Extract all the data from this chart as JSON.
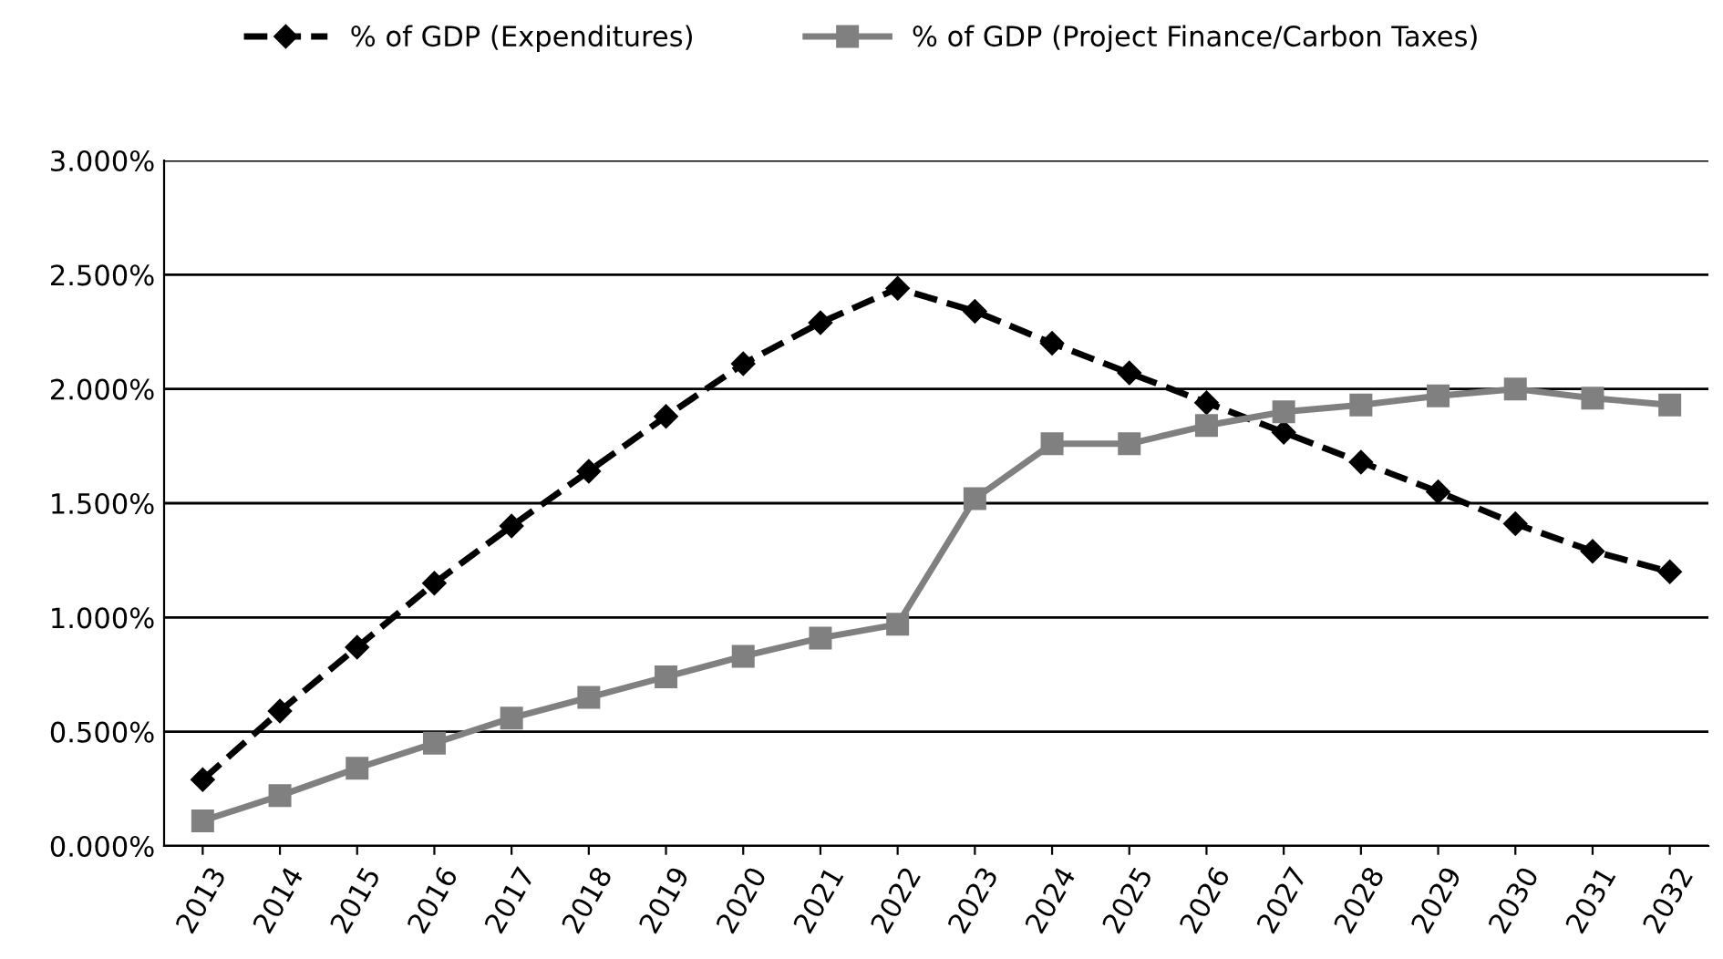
{
  "chart_data": {
    "type": "line",
    "categories": [
      "2013",
      "2014",
      "2015",
      "2016",
      "2017",
      "2018",
      "2019",
      "2020",
      "2021",
      "2022",
      "2023",
      "2024",
      "2025",
      "2026",
      "2027",
      "2028",
      "2029",
      "2030",
      "2031",
      "2032"
    ],
    "series": [
      {
        "name": "% of GDP (Expenditures)",
        "color": "#000000",
        "marker": "diamond",
        "line_style": "dashed",
        "values": [
          0.29,
          0.59,
          0.87,
          1.15,
          1.4,
          1.64,
          1.88,
          2.11,
          2.29,
          2.44,
          2.34,
          2.2,
          2.07,
          1.94,
          1.81,
          1.68,
          1.55,
          1.41,
          1.29,
          1.2
        ]
      },
      {
        "name": "% of GDP (Project Finance/Carbon Taxes)",
        "color": "#808080",
        "marker": "square",
        "line_style": "solid",
        "values": [
          0.11,
          0.22,
          0.34,
          0.45,
          0.56,
          0.65,
          0.74,
          0.83,
          0.91,
          0.97,
          1.52,
          1.76,
          1.76,
          1.84,
          1.9,
          1.93,
          1.97,
          2.0,
          1.96,
          1.93
        ]
      }
    ],
    "ylim": [
      0,
      3
    ],
    "yticks": [
      {
        "value": 0,
        "label": "0.000%"
      },
      {
        "value": 0.5,
        "label": "0.500%"
      },
      {
        "value": 1,
        "label": "1.000%"
      },
      {
        "value": 1.5,
        "label": "1.500%"
      },
      {
        "value": 2,
        "label": "2.000%"
      },
      {
        "value": 2.5,
        "label": "2.500%"
      },
      {
        "value": 3,
        "label": "3.000%"
      }
    ],
    "grid": "y",
    "legend": "top"
  }
}
